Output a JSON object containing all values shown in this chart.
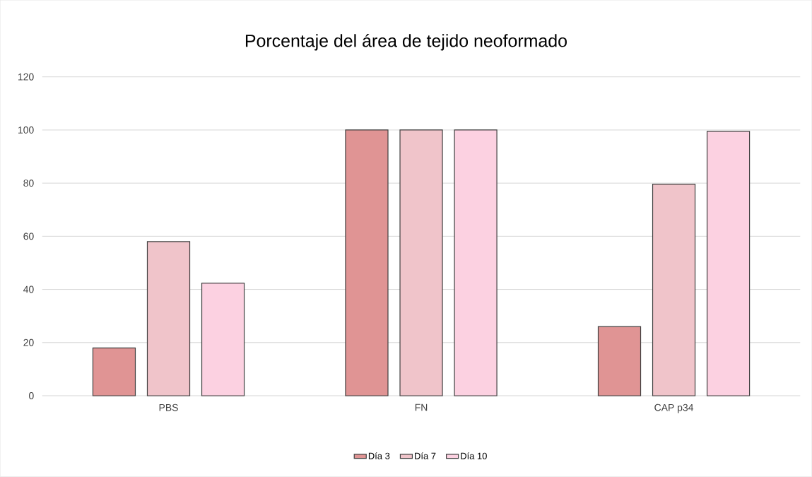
{
  "chart_data": {
    "type": "bar",
    "title": "Porcentaje del área de tejido neoformado",
    "categories": [
      "PBS",
      "FN",
      "CAP p34"
    ],
    "series": [
      {
        "name": "Día 3",
        "color": "#e09494",
        "values": [
          18,
          100,
          26
        ]
      },
      {
        "name": "Día 7",
        "color": "#f0c4ca",
        "values": [
          58,
          100,
          79.6
        ]
      },
      {
        "name": "Día 10",
        "color": "#fcd1e1",
        "values": [
          42.4,
          100,
          99.5
        ]
      }
    ],
    "ylim": [
      0,
      120
    ],
    "yticks": [
      0,
      20,
      40,
      60,
      80,
      100,
      120
    ],
    "grid": "y",
    "legend": "bottom"
  }
}
